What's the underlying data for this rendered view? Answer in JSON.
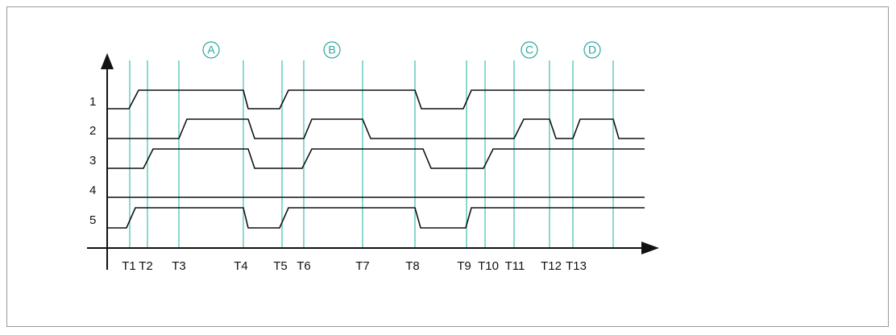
{
  "signals": [
    "1",
    "2",
    "3",
    "4",
    "5"
  ],
  "times": [
    "T1",
    "T2",
    "T3",
    "T4",
    "T5",
    "T6",
    "T7",
    "T8",
    "T9",
    "T10",
    "T11",
    "T12",
    "T13"
  ],
  "phases": [
    "A",
    "B",
    "C",
    "D"
  ]
}
